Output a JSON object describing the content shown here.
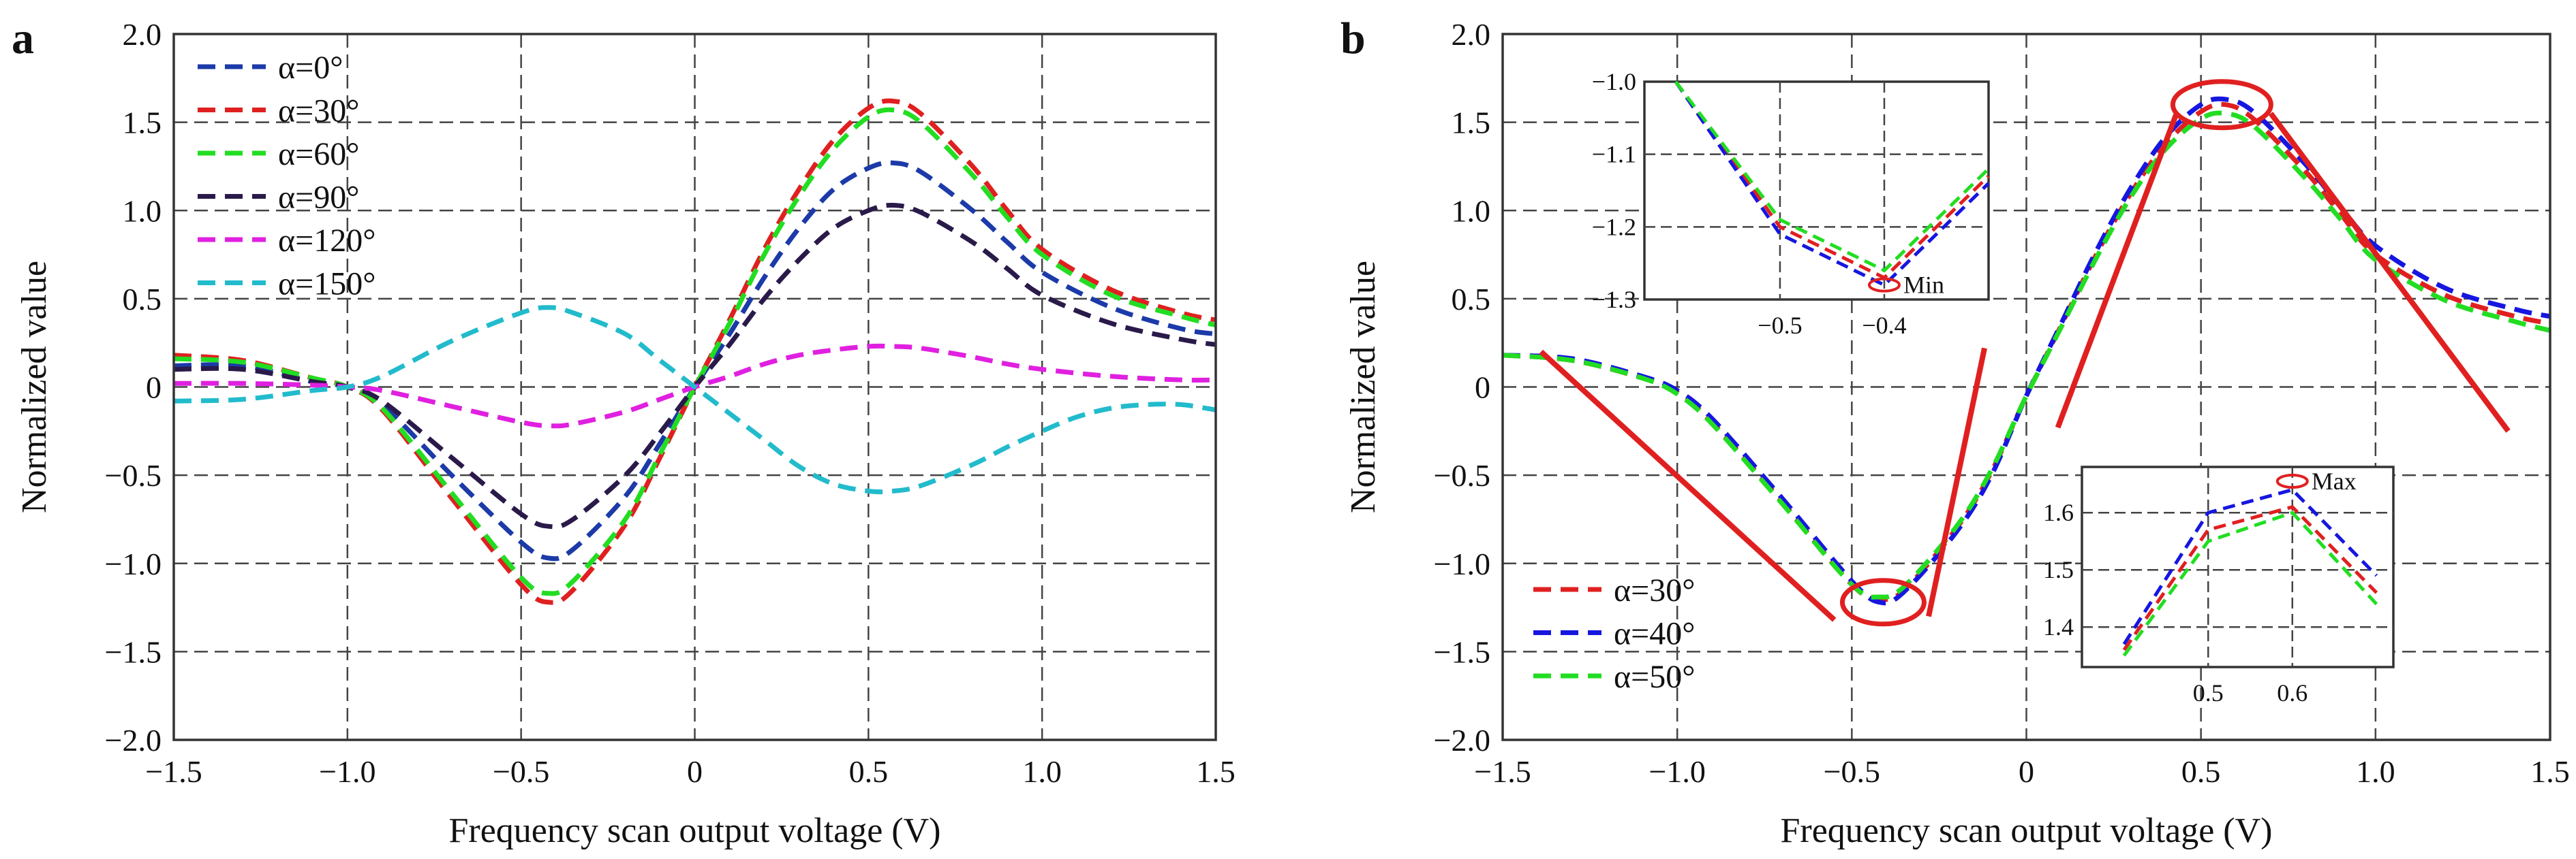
{
  "colors": {
    "red": "#e02020",
    "blue": "#1c3aa8",
    "green": "#22dd22",
    "navy": "#2a1a4a",
    "magenta": "#e020e0",
    "cyan": "#22bbcc",
    "bright_blue": "#1616e0",
    "annotation": "#e02020",
    "grid": "#444444"
  },
  "chart_data": [
    {
      "panel_label": "a",
      "type": "line",
      "xlabel": "Frequency scan output voltage (V)",
      "ylabel": "Normalized value",
      "xlim": [
        -1.5,
        1.5
      ],
      "ylim": [
        -2.0,
        2.0
      ],
      "x_ticks": [
        -1.5,
        -1.0,
        -0.5,
        0,
        0.5,
        1.0,
        1.5
      ],
      "x_tick_labels": [
        "−1.5",
        "−1.0",
        "−0.5",
        "0",
        "0.5",
        "1.0",
        "1.5"
      ],
      "y_ticks": [
        2.0,
        1.5,
        1.0,
        0.5,
        0,
        -0.5,
        -1.0,
        -1.5,
        -2.0
      ],
      "y_tick_labels": [
        "2.0",
        "1.5",
        "1.0",
        "0.5",
        "0",
        "−0.5",
        "−1.0",
        "−1.5",
        "−2.0"
      ],
      "grid": true,
      "legend_position": "top-left",
      "series": [
        {
          "name": "α=0°",
          "color_key": "blue",
          "x": [
            -1.5,
            -1.3,
            -1.1,
            -1.0,
            -0.9,
            -0.7,
            -0.5,
            -0.42,
            -0.35,
            -0.2,
            -0.1,
            0,
            0.1,
            0.2,
            0.3,
            0.4,
            0.5,
            0.57,
            0.65,
            0.8,
            0.9,
            1.0,
            1.2,
            1.4,
            1.5
          ],
          "y": [
            0.12,
            0.12,
            0.03,
            0,
            -0.1,
            -0.5,
            -0.88,
            -0.97,
            -0.92,
            -0.62,
            -0.32,
            0,
            0.3,
            0.62,
            0.9,
            1.12,
            1.24,
            1.27,
            1.22,
            1.0,
            0.82,
            0.65,
            0.45,
            0.33,
            0.3
          ]
        },
        {
          "name": "α=30°",
          "color_key": "red",
          "x": [
            -1.5,
            -1.3,
            -1.1,
            -1.0,
            -0.9,
            -0.7,
            -0.5,
            -0.42,
            -0.35,
            -0.2,
            -0.1,
            0,
            0.1,
            0.2,
            0.3,
            0.4,
            0.5,
            0.57,
            0.65,
            0.8,
            0.9,
            1.0,
            1.2,
            1.4,
            1.5
          ],
          "y": [
            0.18,
            0.15,
            0.05,
            0,
            -0.13,
            -0.63,
            -1.12,
            -1.22,
            -1.15,
            -0.78,
            -0.4,
            0,
            0.38,
            0.78,
            1.12,
            1.4,
            1.58,
            1.62,
            1.55,
            1.25,
            1.0,
            0.78,
            0.55,
            0.42,
            0.38
          ]
        },
        {
          "name": "α=60°",
          "color_key": "green",
          "x": [
            -1.5,
            -1.3,
            -1.1,
            -1.0,
            -0.9,
            -0.7,
            -0.5,
            -0.42,
            -0.35,
            -0.2,
            -0.1,
            0,
            0.1,
            0.2,
            0.3,
            0.4,
            0.5,
            0.57,
            0.65,
            0.8,
            0.9,
            1.0,
            1.2,
            1.4,
            1.5
          ],
          "y": [
            0.16,
            0.14,
            0.05,
            0,
            -0.12,
            -0.6,
            -1.08,
            -1.17,
            -1.1,
            -0.75,
            -0.38,
            0,
            0.36,
            0.75,
            1.08,
            1.35,
            1.53,
            1.57,
            1.5,
            1.2,
            0.96,
            0.75,
            0.52,
            0.4,
            0.35
          ]
        },
        {
          "name": "α=90°",
          "color_key": "navy",
          "x": [
            -1.5,
            -1.3,
            -1.1,
            -1.0,
            -0.9,
            -0.7,
            -0.5,
            -0.42,
            -0.35,
            -0.2,
            -0.1,
            0,
            0.1,
            0.2,
            0.3,
            0.4,
            0.5,
            0.57,
            0.65,
            0.8,
            0.9,
            1.0,
            1.2,
            1.4,
            1.5
          ],
          "y": [
            0.1,
            0.1,
            0.03,
            0,
            -0.08,
            -0.4,
            -0.72,
            -0.79,
            -0.75,
            -0.5,
            -0.26,
            0,
            0.24,
            0.5,
            0.72,
            0.9,
            1.0,
            1.03,
            0.99,
            0.82,
            0.67,
            0.52,
            0.36,
            0.27,
            0.24
          ]
        },
        {
          "name": "α=120°",
          "color_key": "magenta",
          "x": [
            -1.5,
            -1.3,
            -1.1,
            -1.0,
            -0.9,
            -0.7,
            -0.5,
            -0.42,
            -0.35,
            -0.2,
            -0.1,
            0,
            0.1,
            0.2,
            0.3,
            0.4,
            0.5,
            0.57,
            0.65,
            0.8,
            0.9,
            1.0,
            1.2,
            1.4,
            1.5
          ],
          "y": [
            0.02,
            0.02,
            0.01,
            0,
            -0.02,
            -0.11,
            -0.2,
            -0.22,
            -0.21,
            -0.14,
            -0.07,
            0,
            0.06,
            0.13,
            0.18,
            0.21,
            0.23,
            0.23,
            0.22,
            0.17,
            0.13,
            0.1,
            0.06,
            0.04,
            0.04
          ]
        },
        {
          "name": "α=150°",
          "color_key": "cyan",
          "x": [
            -1.5,
            -1.3,
            -1.1,
            -1.0,
            -0.9,
            -0.7,
            -0.5,
            -0.42,
            -0.35,
            -0.2,
            -0.1,
            0,
            0.1,
            0.2,
            0.3,
            0.4,
            0.5,
            0.57,
            0.65,
            0.8,
            0.9,
            1.0,
            1.1,
            1.2,
            1.3,
            1.4,
            1.5
          ],
          "y": [
            -0.08,
            -0.07,
            -0.02,
            0,
            0.06,
            0.26,
            0.42,
            0.45,
            0.42,
            0.3,
            0.15,
            0,
            -0.15,
            -0.3,
            -0.45,
            -0.55,
            -0.59,
            -0.59,
            -0.56,
            -0.44,
            -0.34,
            -0.25,
            -0.17,
            -0.12,
            -0.1,
            -0.1,
            -0.13
          ]
        }
      ]
    },
    {
      "panel_label": "b",
      "type": "line",
      "xlabel": "Frequency scan output voltage (V)",
      "ylabel": "Normalized value",
      "xlim": [
        -1.5,
        1.5
      ],
      "ylim": [
        -2.0,
        2.0
      ],
      "x_ticks": [
        -1.5,
        -1.0,
        -0.5,
        0,
        0.5,
        1.0,
        1.5
      ],
      "x_tick_labels": [
        "−1.5",
        "−1.0",
        "−0.5",
        "0",
        "0.5",
        "1.0",
        "1.5"
      ],
      "y_ticks": [
        2.0,
        1.5,
        1.0,
        0.5,
        0,
        -0.5,
        -1.0,
        -1.5,
        -2.0
      ],
      "y_tick_labels": [
        "2.0",
        "1.5",
        "1.0",
        "0.5",
        "0",
        "−0.5",
        "−1.0",
        "−1.5",
        "−2.0"
      ],
      "grid": true,
      "legend_position": "bottom-left",
      "series": [
        {
          "name": "α=30°",
          "color_key": "red",
          "x": [
            -1.5,
            -1.3,
            -1.1,
            -1.0,
            -0.9,
            -0.7,
            -0.5,
            -0.42,
            -0.35,
            -0.2,
            -0.1,
            0,
            0.1,
            0.2,
            0.3,
            0.4,
            0.5,
            0.57,
            0.65,
            0.8,
            0.9,
            1.0,
            1.2,
            1.4,
            1.5
          ],
          "y": [
            0.18,
            0.15,
            0.05,
            -0.03,
            -0.2,
            -0.65,
            -1.12,
            -1.2,
            -1.15,
            -0.8,
            -0.48,
            -0.05,
            0.35,
            0.75,
            1.1,
            1.38,
            1.56,
            1.6,
            1.52,
            1.22,
            0.98,
            0.75,
            0.52,
            0.4,
            0.36
          ]
        },
        {
          "name": "α=40°",
          "color_key": "bright_blue",
          "x": [
            -1.5,
            -1.3,
            -1.1,
            -1.0,
            -0.9,
            -0.7,
            -0.5,
            -0.42,
            -0.35,
            -0.2,
            -0.1,
            0,
            0.1,
            0.2,
            0.3,
            0.4,
            0.5,
            0.57,
            0.65,
            0.8,
            0.9,
            1.0,
            1.2,
            1.4,
            1.5
          ],
          "y": [
            0.18,
            0.16,
            0.06,
            -0.02,
            -0.18,
            -0.63,
            -1.1,
            -1.22,
            -1.16,
            -0.82,
            -0.5,
            -0.05,
            0.36,
            0.77,
            1.13,
            1.42,
            1.6,
            1.63,
            1.56,
            1.26,
            1.02,
            0.8,
            0.56,
            0.44,
            0.4
          ]
        },
        {
          "name": "α=50°",
          "color_key": "green",
          "x": [
            -1.5,
            -1.3,
            -1.1,
            -1.0,
            -0.9,
            -0.7,
            -0.5,
            -0.42,
            -0.35,
            -0.2,
            -0.1,
            0,
            0.1,
            0.2,
            0.3,
            0.4,
            0.5,
            0.57,
            0.65,
            0.8,
            0.9,
            1.0,
            1.2,
            1.4,
            1.5
          ],
          "y": [
            0.18,
            0.15,
            0.05,
            -0.04,
            -0.21,
            -0.66,
            -1.12,
            -1.19,
            -1.13,
            -0.79,
            -0.47,
            -0.05,
            0.34,
            0.73,
            1.08,
            1.35,
            1.52,
            1.55,
            1.48,
            1.18,
            0.95,
            0.72,
            0.49,
            0.37,
            0.32
          ]
        }
      ],
      "annotations": [
        "Min",
        "Max"
      ],
      "insets": [
        {
          "name": "min-inset",
          "xlim": [
            -0.63,
            -0.3
          ],
          "ylim": [
            -1.3,
            -1.0
          ],
          "x_ticks": [
            -0.5,
            -0.4
          ],
          "x_tick_labels": [
            "−0.5",
            "−0.4"
          ],
          "y_ticks": [
            -1.0,
            -1.1,
            -1.2,
            -1.3
          ],
          "y_tick_labels": [
            "−1.0",
            "−1.1",
            "−1.2",
            "−1.3"
          ],
          "label": "Min",
          "series": [
            {
              "color_key": "red",
              "x": [
                -0.6,
                -0.5,
                -0.4,
                -0.3
              ],
              "y": [
                -1.0,
                -1.2,
                -1.27,
                -1.13
              ]
            },
            {
              "color_key": "bright_blue",
              "x": [
                -0.6,
                -0.5,
                -0.4,
                -0.3
              ],
              "y": [
                -1.0,
                -1.21,
                -1.28,
                -1.14
              ]
            },
            {
              "color_key": "green",
              "x": [
                -0.6,
                -0.5,
                -0.4,
                -0.3
              ],
              "y": [
                -1.0,
                -1.19,
                -1.26,
                -1.12
              ]
            }
          ]
        },
        {
          "name": "max-inset",
          "xlim": [
            0.35,
            0.72
          ],
          "ylim": [
            1.33,
            1.68
          ],
          "x_ticks": [
            0.5,
            0.6
          ],
          "x_tick_labels": [
            "0.5",
            "0.6"
          ],
          "y_ticks": [
            1.6,
            1.5,
            1.4
          ],
          "y_tick_labels": [
            "1.6",
            "1.5",
            "1.4"
          ],
          "label": "Max",
          "series": [
            {
              "color_key": "red",
              "x": [
                0.4,
                0.5,
                0.6,
                0.7
              ],
              "y": [
                1.36,
                1.57,
                1.61,
                1.46
              ]
            },
            {
              "color_key": "bright_blue",
              "x": [
                0.4,
                0.5,
                0.6,
                0.7
              ],
              "y": [
                1.37,
                1.6,
                1.64,
                1.49
              ]
            },
            {
              "color_key": "green",
              "x": [
                0.4,
                0.5,
                0.6,
                0.7
              ],
              "y": [
                1.35,
                1.55,
                1.6,
                1.44
              ]
            }
          ]
        }
      ]
    }
  ]
}
